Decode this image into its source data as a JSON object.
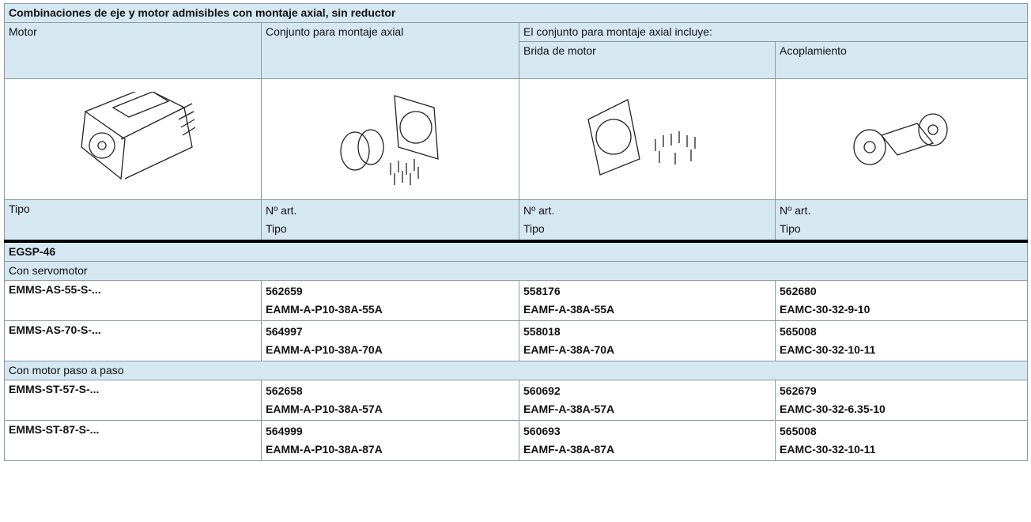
{
  "title": "Combinaciones de eje y motor admisibles con montaje axial, sin reductor",
  "header": {
    "motor": "Motor",
    "set": "Conjunto para montaje axial",
    "includes": "El conjunto para montaje axial incluye:",
    "flange": "Brida de motor",
    "coupling": "Acoplamiento"
  },
  "labels": {
    "type": "Tipo",
    "part": "Nº art.",
    "type2": "Tipo"
  },
  "sections": [
    {
      "name": "EGSP-46",
      "groups": [
        {
          "name": "Con servomotor",
          "rows": [
            {
              "motor": "EMMS-AS-55-S-...",
              "set": [
                "562659",
                "EAMM-A-P10-38A-55A"
              ],
              "flange": [
                "558176",
                "EAMF-A-38A-55A"
              ],
              "coupling": [
                "562680",
                "EAMC-30-32-9-10"
              ]
            },
            {
              "motor": "EMMS-AS-70-S-...",
              "set": [
                "564997",
                "EAMM-A-P10-38A-70A"
              ],
              "flange": [
                "558018",
                "EAMF-A-38A-70A"
              ],
              "coupling": [
                "565008",
                "EAMC-30-32-10-11"
              ]
            }
          ]
        },
        {
          "name": "Con motor paso a paso",
          "rows": [
            {
              "motor": "EMMS-ST-57-S-...",
              "set": [
                "562658",
                "EAMM-A-P10-38A-57A"
              ],
              "flange": [
                "560692",
                "EAMF-A-38A-57A"
              ],
              "coupling": [
                "562679",
                "EAMC-30-32-6.35-10"
              ]
            },
            {
              "motor": "EMMS-ST-87-S-...",
              "set": [
                "564999",
                "EAMM-A-P10-38A-87A"
              ],
              "flange": [
                "560693",
                "EAMF-A-38A-87A"
              ],
              "coupling": [
                "565008",
                "EAMC-30-32-10-11"
              ]
            }
          ]
        }
      ]
    }
  ]
}
